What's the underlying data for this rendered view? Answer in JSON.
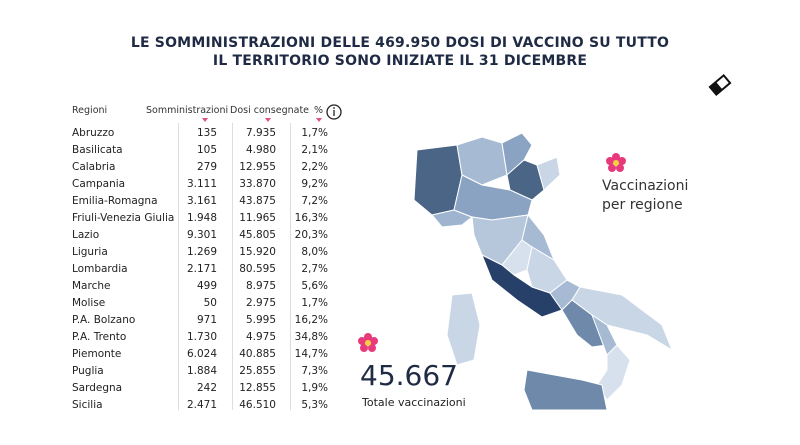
{
  "header": {
    "title_line1": "LE SOMMINISTRAZIONI DELLE 469.950 DOSI DI VACCINO SU TUTTO",
    "title_line2": "IL TERRITORIO SONO INIZIATE IL 31 DICEMBRE"
  },
  "table": {
    "columns": [
      "Regioni",
      "Somministrazioni",
      "Dosi consegnate",
      "%"
    ],
    "rows": [
      [
        "Abruzzo",
        "135",
        "7.935",
        "1,7%"
      ],
      [
        "Basilicata",
        "105",
        "4.980",
        "2,1%"
      ],
      [
        "Calabria",
        "279",
        "12.955",
        "2,2%"
      ],
      [
        "Campania",
        "3.111",
        "33.870",
        "9,2%"
      ],
      [
        "Emilia-Romagna",
        "3.161",
        "43.875",
        "7,2%"
      ],
      [
        "Friuli-Venezia Giulia",
        "1.948",
        "11.965",
        "16,3%"
      ],
      [
        "Lazio",
        "9.301",
        "45.805",
        "20,3%"
      ],
      [
        "Liguria",
        "1.269",
        "15.920",
        "8,0%"
      ],
      [
        "Lombardia",
        "2.171",
        "80.595",
        "2,7%"
      ],
      [
        "Marche",
        "499",
        "8.975",
        "5,6%"
      ],
      [
        "Molise",
        "50",
        "2.975",
        "1,7%"
      ],
      [
        "P.A. Bolzano",
        "971",
        "5.995",
        "16,2%"
      ],
      [
        "P.A. Trento",
        "1.730",
        "4.975",
        "34,8%"
      ],
      [
        "Piemonte",
        "6.024",
        "40.885",
        "14,7%"
      ],
      [
        "Puglia",
        "1.884",
        "25.855",
        "7,3%"
      ],
      [
        "Sardegna",
        "242",
        "12.855",
        "1,9%"
      ],
      [
        "Sicilia",
        "2.471",
        "46.510",
        "5,3%"
      ]
    ]
  },
  "map": {
    "legend": "Vaccinazioni per regione",
    "total": "45.667",
    "total_label": "Totale vaccinazioni"
  }
}
